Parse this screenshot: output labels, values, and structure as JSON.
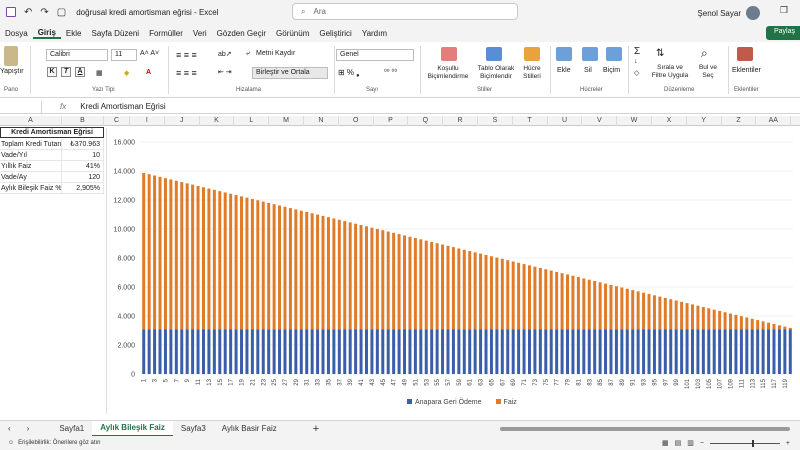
{
  "window": {
    "doc_title": "doğrusal kredi amortisman eğrisi  -  Excel",
    "search_placeholder": "Ara",
    "user_name": "Şenol Sayar"
  },
  "ribbon_tabs": [
    "Dosya",
    "Giriş",
    "Ekle",
    "Sayfa Düzeni",
    "Formüller",
    "Veri",
    "Gözden Geçir",
    "Görünüm",
    "Geliştirici",
    "Yardım"
  ],
  "active_tab": "Giriş",
  "share_label": "Paylaş",
  "ribbon": {
    "paste": "Yapıştır",
    "font_name": "Calibri",
    "font_size": "11",
    "wrap_text": "Metni Kaydır",
    "merge_center": "Birleştir ve Ortala",
    "number_format": "Genel",
    "conditional": "Koşullu Biçimlendirme",
    "format_table": "Tablo Olarak Biçimlendir",
    "cell_styles": "Hücre Stilleri",
    "insert": "Ekle",
    "delete": "Sil",
    "format": "Biçim",
    "sort_filter": "Sırala ve Filtre Uygula",
    "find_select": "Bul ve Seç",
    "addins": "Eklentiler",
    "groups": {
      "clipboard": "Pano",
      "font": "Yazı Tipi",
      "alignment": "Hizalama",
      "number": "Sayı",
      "styles": "Stiller",
      "cells": "Hücreler",
      "editing": "Düzenleme",
      "addins": "Eklentiler"
    }
  },
  "formula_bar": {
    "fx": "fx",
    "content": "Kredi Amortisman Eğrisi"
  },
  "columns": [
    "A",
    "B",
    "C",
    "I",
    "J",
    "K",
    "L",
    "M",
    "N",
    "O",
    "P",
    "Q",
    "R",
    "S",
    "T",
    "U",
    "V",
    "W",
    "X",
    "Y",
    "Z",
    "AA"
  ],
  "table": {
    "header": "Kredi Amortisman Eğrisi",
    "rows": [
      {
        "label": "Toplam Kredi Tutarı",
        "value": "₺370.963"
      },
      {
        "label": "Vade/Yıl",
        "value": "10"
      },
      {
        "label": "Yıllık Faiz",
        "value": "41%"
      },
      {
        "label": "Vade/Ay",
        "value": "120"
      },
      {
        "label": "Aylık Bileşik Faiz %",
        "value": "2,905%"
      }
    ]
  },
  "sheet_tabs": [
    "Sayfa1",
    "Aylık Bileşik Faiz",
    "Sayfa3",
    "Aylık Basir Faiz"
  ],
  "active_sheet": "Aylık Bileşik Faiz",
  "status": {
    "accessibility": "Erişilebilirlik: Önerilere göz atın"
  },
  "colors": {
    "principal": "#3a5ea8",
    "interest": "#e07b29",
    "excel_green": "#217346"
  },
  "chart_data": {
    "type": "bar",
    "stacked": true,
    "x": {
      "start": 1,
      "end": 120,
      "labels_every": 2
    },
    "ylim": [
      0,
      16000
    ],
    "yticks": [
      "0",
      "2.000",
      "4.000",
      "6.000",
      "8.000",
      "10.000",
      "12.000",
      "14.000",
      "16.000"
    ],
    "series": [
      {
        "name": "Anapara Geri Ödeme",
        "constant_value": 3091
      },
      {
        "name": "Faiz",
        "first_value": 10776,
        "last_value": 90
      }
    ],
    "legend": "bottom"
  }
}
